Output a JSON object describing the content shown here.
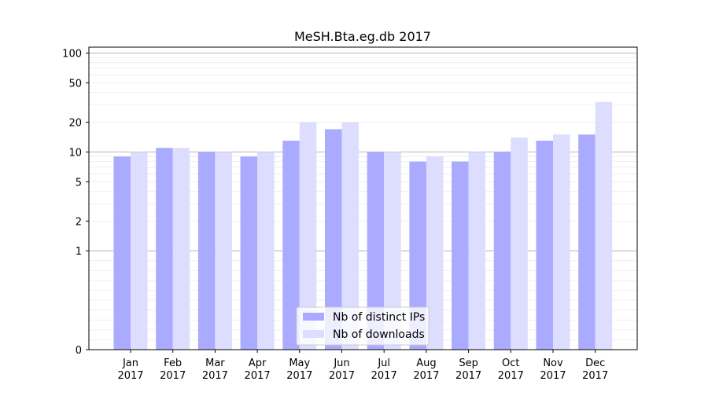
{
  "chart_data": {
    "type": "bar",
    "title": "MeSH.Bta.eg.db 2017",
    "xlabel": "",
    "ylabel": "",
    "yscale": "symlog",
    "ylim": [
      0,
      115
    ],
    "yticks": [
      0,
      1,
      2,
      5,
      10,
      20,
      50,
      100
    ],
    "ytick_labels": [
      "0",
      "1",
      "2",
      "5",
      "10",
      "20",
      "50",
      "100"
    ],
    "grid": "horizontal",
    "legend_position": "lower-center",
    "categories": [
      [
        "Jan",
        "2017"
      ],
      [
        "Feb",
        "2017"
      ],
      [
        "Mar",
        "2017"
      ],
      [
        "Apr",
        "2017"
      ],
      [
        "May",
        "2017"
      ],
      [
        "Jun",
        "2017"
      ],
      [
        "Jul",
        "2017"
      ],
      [
        "Aug",
        "2017"
      ],
      [
        "Sep",
        "2017"
      ],
      [
        "Oct",
        "2017"
      ],
      [
        "Nov",
        "2017"
      ],
      [
        "Dec",
        "2017"
      ]
    ],
    "series": [
      {
        "name": "Nb of distinct IPs",
        "color": "#aaaaff",
        "values": [
          9,
          11,
          10,
          9,
          13,
          17,
          10,
          8,
          8,
          10,
          13,
          15
        ]
      },
      {
        "name": "Nb of downloads",
        "color": "#ddddff",
        "values": [
          10,
          11,
          10,
          10,
          20,
          20,
          10,
          9,
          10,
          14,
          15,
          32
        ]
      }
    ]
  }
}
